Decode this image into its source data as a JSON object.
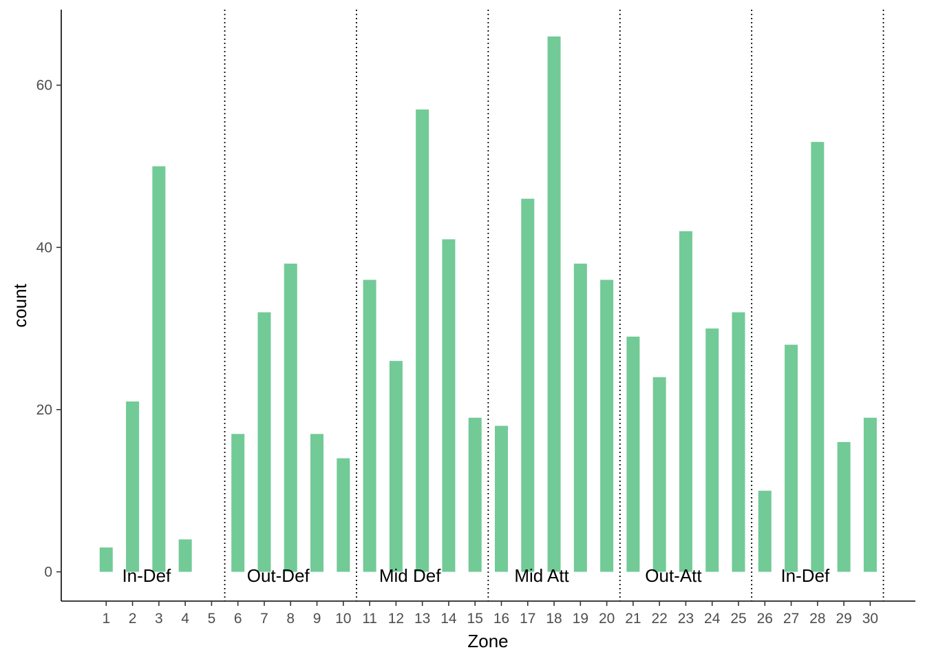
{
  "chart_data": {
    "type": "bar",
    "title": "",
    "xlabel": "Zone",
    "ylabel": "count",
    "categories": [
      "1",
      "2",
      "3",
      "4",
      "5",
      "6",
      "7",
      "8",
      "9",
      "10",
      "11",
      "12",
      "13",
      "14",
      "15",
      "16",
      "17",
      "18",
      "19",
      "20",
      "21",
      "22",
      "23",
      "24",
      "25",
      "26",
      "27",
      "28",
      "29",
      "30"
    ],
    "values": [
      3,
      21,
      50,
      4,
      0,
      17,
      32,
      38,
      17,
      14,
      36,
      26,
      57,
      41,
      19,
      18,
      46,
      66,
      38,
      36,
      29,
      24,
      42,
      30,
      32,
      10,
      28,
      53,
      16,
      19
    ],
    "yticks": [
      "0",
      "20",
      "40",
      "60"
    ],
    "ylim": [
      -3.6,
      69
    ],
    "grid": false,
    "bar_color": "#72ca97",
    "separator_color": "#000000",
    "separators_after": [
      5,
      10,
      15,
      20,
      25,
      30
    ],
    "zones": [
      {
        "label": "In-Def",
        "center": 3
      },
      {
        "label": "Out-Def",
        "center": 8
      },
      {
        "label": "Mid Def",
        "center": 13
      },
      {
        "label": "Mid Att",
        "center": 18
      },
      {
        "label": "Out-Att",
        "center": 23
      },
      {
        "label": "In-Def",
        "center": 28
      }
    ]
  }
}
